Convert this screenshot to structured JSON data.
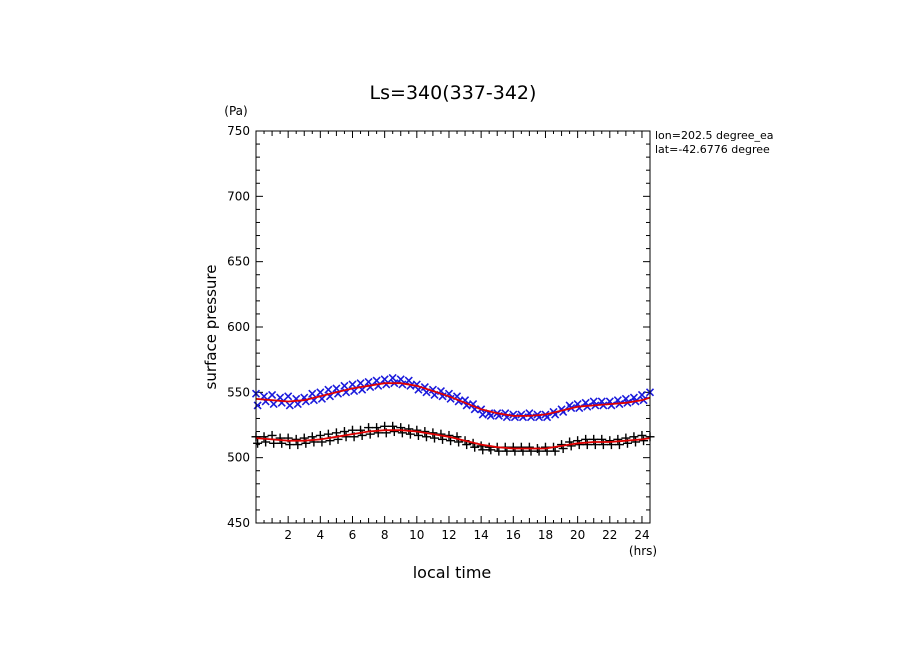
{
  "chart_data": {
    "type": "scatter",
    "title": "Ls=340(337-342)",
    "xlabel": "local time",
    "xunit": "(hrs)",
    "ylabel": "surface pressure",
    "yunit": "(Pa)",
    "xlim": [
      0,
      24.5
    ],
    "ylim": [
      450,
      750
    ],
    "xticks": [
      2,
      4,
      6,
      8,
      10,
      12,
      14,
      16,
      18,
      20,
      22,
      24
    ],
    "yticks": [
      450,
      500,
      550,
      600,
      650,
      700,
      750
    ],
    "grid": false,
    "annotations": [
      "lon=202.5 degree_ea",
      "lat=-42.6776 degree"
    ],
    "colors": {
      "upper_markers": "#1a1adc",
      "lower_markers": "#000000",
      "fit_line": "#e00000"
    },
    "series": [
      {
        "marker": "x",
        "color": "#1a1adc",
        "x": [
          0,
          0.1,
          0.5,
          0.6,
          1,
          1.1,
          1.5,
          1.6,
          2,
          2.1,
          2.5,
          2.6,
          3,
          3.1,
          3.5,
          3.6,
          4,
          4.1,
          4.5,
          4.6,
          5,
          5.1,
          5.5,
          5.6,
          6,
          6.1,
          6.5,
          6.6,
          7,
          7.1,
          7.5,
          7.6,
          8,
          8.1,
          8.5,
          8.6,
          9,
          9.1,
          9.5,
          9.6,
          10,
          10.1,
          10.5,
          10.6,
          11,
          11.1,
          11.5,
          11.6,
          12,
          12.1,
          12.5,
          12.6,
          13,
          13.1,
          13.5,
          13.6,
          14,
          14.1,
          14.5,
          14.6,
          15,
          15.1,
          15.5,
          15.6,
          16,
          16.1,
          16.5,
          16.6,
          17,
          17.1,
          17.5,
          17.6,
          18,
          18.1,
          18.5,
          18.6,
          19,
          19.1,
          19.5,
          19.6,
          20,
          20.1,
          20.5,
          20.6,
          21,
          21.1,
          21.5,
          21.6,
          22,
          22.1,
          22.5,
          22.6,
          23,
          23.1,
          23.5,
          23.6,
          24,
          24.1,
          24.5
        ],
        "y": [
          549,
          540,
          547,
          543,
          548,
          541,
          546,
          542,
          547,
          540,
          545,
          541,
          546,
          543,
          549,
          544,
          550,
          545,
          552,
          547,
          553,
          549,
          555,
          550,
          556,
          551,
          557,
          552,
          558,
          554,
          559,
          555,
          560,
          556,
          561,
          557,
          560,
          556,
          559,
          555,
          556,
          552,
          554,
          550,
          552,
          548,
          551,
          547,
          549,
          545,
          547,
          543,
          544,
          540,
          541,
          537,
          537,
          533,
          534,
          532,
          534,
          532,
          534,
          531,
          533,
          531,
          533,
          531,
          534,
          531,
          533,
          531,
          533,
          531,
          535,
          533,
          537,
          535,
          540,
          538,
          541,
          538,
          542,
          539,
          543,
          540,
          543,
          540,
          543,
          540,
          544,
          541,
          545,
          542,
          546,
          543,
          548,
          544,
          550
        ]
      },
      {
        "marker": "+",
        "color": "#000000",
        "x": [
          0,
          0.1,
          0.5,
          0.6,
          1,
          1.1,
          1.5,
          1.6,
          2,
          2.1,
          2.5,
          2.6,
          3,
          3.1,
          3.5,
          3.6,
          4,
          4.1,
          4.5,
          4.6,
          5,
          5.1,
          5.5,
          5.6,
          6,
          6.1,
          6.5,
          6.6,
          7,
          7.1,
          7.5,
          7.6,
          8,
          8.1,
          8.5,
          8.6,
          9,
          9.1,
          9.5,
          9.6,
          10,
          10.1,
          10.5,
          10.6,
          11,
          11.1,
          11.5,
          11.6,
          12,
          12.1,
          12.5,
          12.6,
          13,
          13.1,
          13.5,
          13.6,
          14,
          14.1,
          14.5,
          14.6,
          15,
          15.1,
          15.5,
          15.6,
          16,
          16.1,
          16.5,
          16.6,
          17,
          17.1,
          17.5,
          17.6,
          18,
          18.1,
          18.5,
          18.6,
          19,
          19.1,
          19.5,
          19.6,
          20,
          20.1,
          20.5,
          20.6,
          21,
          21.1,
          21.5,
          21.6,
          22,
          22.1,
          22.5,
          22.6,
          23,
          23.1,
          23.5,
          23.6,
          24,
          24.1,
          24.5
        ],
        "y": [
          516,
          511,
          516,
          512,
          517,
          511,
          515,
          511,
          515,
          510,
          514,
          510,
          515,
          511,
          516,
          512,
          517,
          512,
          518,
          513,
          519,
          514,
          520,
          516,
          521,
          516,
          521,
          517,
          523,
          518,
          523,
          519,
          524,
          519,
          524,
          520,
          523,
          519,
          522,
          518,
          521,
          517,
          520,
          516,
          519,
          515,
          518,
          514,
          517,
          513,
          516,
          512,
          513,
          510,
          511,
          508,
          509,
          506,
          508,
          506,
          508,
          505,
          508,
          505,
          508,
          505,
          508,
          505,
          508,
          505,
          507,
          505,
          508,
          505,
          508,
          505,
          510,
          507,
          512,
          509,
          513,
          510,
          514,
          510,
          514,
          510,
          514,
          510,
          513,
          510,
          514,
          510,
          515,
          511,
          516,
          512,
          517,
          513,
          516
        ]
      },
      {
        "marker": "line",
        "color": "#e00000",
        "x": [
          0,
          1,
          2,
          3,
          4,
          5,
          6,
          7,
          8,
          9,
          10,
          11,
          12,
          13,
          14,
          15,
          16,
          17,
          18,
          19,
          20,
          21,
          22,
          23,
          24,
          24.5
        ],
        "y": [
          545,
          544,
          543,
          544,
          547,
          550,
          553,
          555,
          557,
          557,
          555,
          551,
          547,
          542,
          537,
          534,
          532,
          532,
          533,
          536,
          539,
          540,
          541,
          542,
          544,
          546
        ]
      },
      {
        "marker": "line",
        "color": "#e00000",
        "x": [
          0,
          1,
          2,
          3,
          4,
          5,
          6,
          7,
          8,
          9,
          10,
          11,
          12,
          13,
          14,
          15,
          16,
          17,
          18,
          19,
          20,
          21,
          22,
          23,
          24,
          24.5
        ],
        "y": [
          515,
          514,
          513,
          513,
          514,
          516,
          518,
          520,
          521,
          521,
          520,
          518,
          516,
          513,
          510,
          508,
          507,
          507,
          507,
          509,
          511,
          512,
          512,
          513,
          514,
          515
        ]
      }
    ]
  }
}
